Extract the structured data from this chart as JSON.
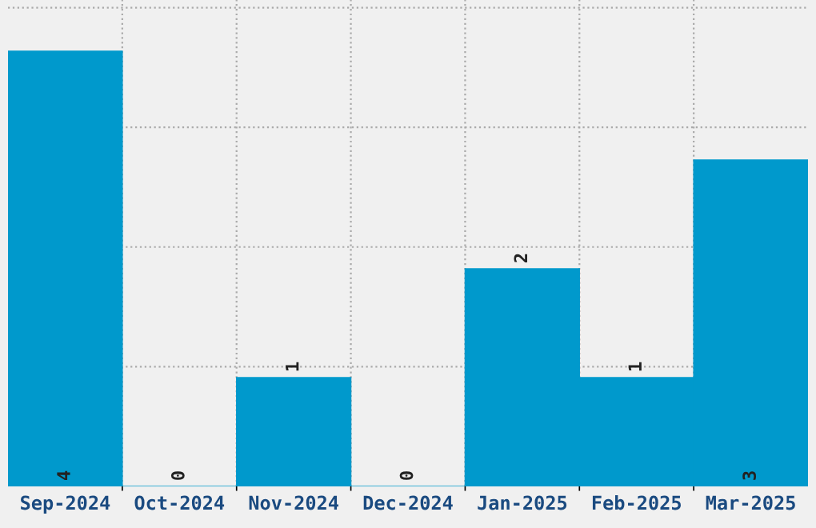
{
  "chart_data": {
    "type": "bar",
    "categories": [
      "Sep-2024",
      "Oct-2024",
      "Nov-2024",
      "Dec-2024",
      "Jan-2025",
      "Feb-2025",
      "Mar-2025"
    ],
    "values": [
      4,
      0,
      1,
      0,
      2,
      1,
      3
    ],
    "color": "#0099cc",
    "data_labels": true,
    "grid": true,
    "tick_labels": "x",
    "ylim": [
      0,
      4.47
    ],
    "yticks": [
      {
        "value": 1.1,
        "label": null
      },
      {
        "value": 2.2,
        "label": null
      },
      {
        "value": 3.3,
        "label": null
      },
      {
        "value": 4.4,
        "label": null
      }
    ]
  }
}
